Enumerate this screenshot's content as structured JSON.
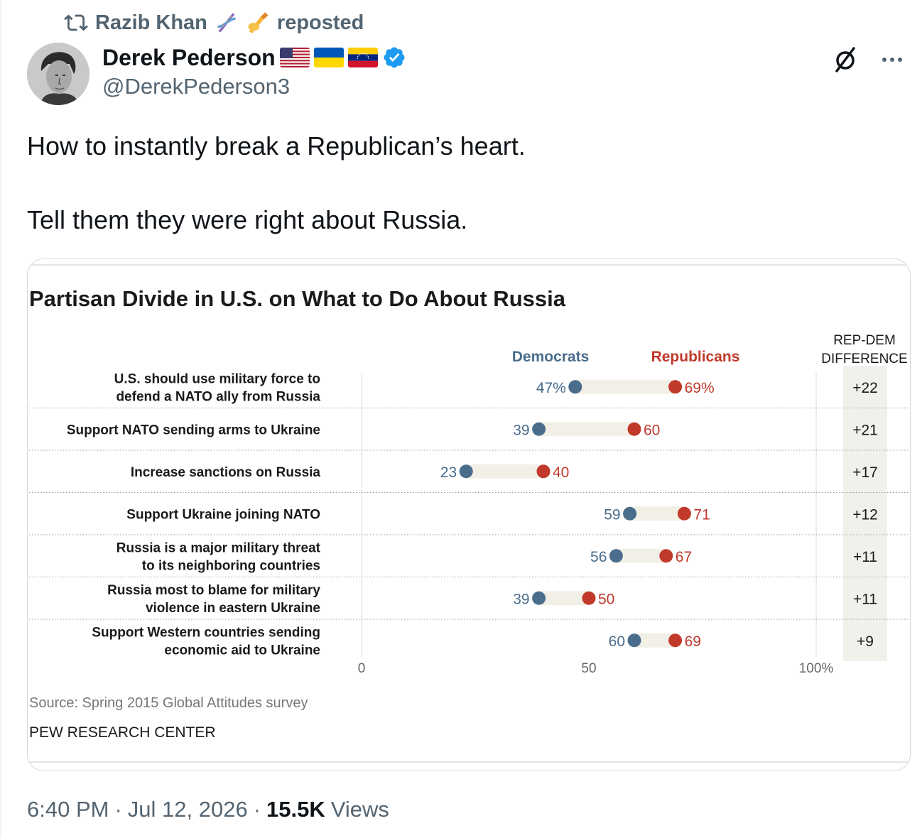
{
  "repost": {
    "reposter_name": "Razib Khan",
    "reposter_emojis": [
      "dna-emoji",
      "writing-hand-emoji"
    ],
    "label": "reposted",
    "icon": "repost-icon"
  },
  "author": {
    "display_name": "Derek Pederson",
    "flags": [
      "us-flag",
      "ukraine-flag",
      "venezuela-flag"
    ],
    "verified": true,
    "handle": "@DerekPederson3",
    "avatar": "avatar-photo"
  },
  "actions": {
    "grok_icon": "grok-icon",
    "more_icon": "more-icon"
  },
  "tweet": {
    "line1": "How to instantly break a Republican’s heart.",
    "line2": "Tell them they were right about Russia."
  },
  "chart_data": {
    "type": "dot",
    "title": "Partisan Divide in U.S. on What to Do About Russia",
    "series": [
      {
        "name": "Democrats",
        "color": "#4a6d8c"
      },
      {
        "name": "Republicans",
        "color": "#c0392b"
      }
    ],
    "difference_header": [
      "REP-DEM",
      "DIFFERENCE"
    ],
    "rows": [
      {
        "label": [
          "U.S. should use military force to",
          "defend a NATO ally from Russia"
        ],
        "dem": 47,
        "rep": 69,
        "dem_label": "47%",
        "rep_label": "69%",
        "diff": "+22"
      },
      {
        "label": [
          "Support NATO sending arms to Ukraine"
        ],
        "dem": 39,
        "rep": 60,
        "dem_label": "39",
        "rep_label": "60",
        "diff": "+21"
      },
      {
        "label": [
          "Increase sanctions on Russia"
        ],
        "dem": 23,
        "rep": 40,
        "dem_label": "23",
        "rep_label": "40",
        "diff": "+17"
      },
      {
        "label": [
          "Support Ukraine joining NATO"
        ],
        "dem": 59,
        "rep": 71,
        "dem_label": "59",
        "rep_label": "71",
        "diff": "+12"
      },
      {
        "label": [
          "Russia is a major military threat",
          "to its neighboring countries"
        ],
        "dem": 56,
        "rep": 67,
        "dem_label": "56",
        "rep_label": "67",
        "diff": "+11"
      },
      {
        "label": [
          "Russia most to blame for military",
          "violence in eastern Ukraine"
        ],
        "dem": 39,
        "rep": 50,
        "dem_label": "39",
        "rep_label": "50",
        "diff": "+11"
      },
      {
        "label": [
          "Support Western countries sending",
          "economic aid to Ukraine"
        ],
        "dem": 60,
        "rep": 69,
        "dem_label": "60",
        "rep_label": "69",
        "diff": "+9"
      }
    ],
    "xaxis": {
      "ticks": [
        0,
        50,
        100
      ],
      "tick_labels": [
        "0",
        "50",
        "100%"
      ],
      "range": [
        0,
        100
      ]
    },
    "source": "Source: Spring 2015 Global Attitudes survey",
    "credit": "PEW RESEARCH CENTER"
  },
  "footer": {
    "time": "6:40 PM",
    "sep1": "·",
    "date": "Jul 12, 2026",
    "sep2": "·",
    "views_count": "15.5K",
    "views_label": "Views"
  }
}
